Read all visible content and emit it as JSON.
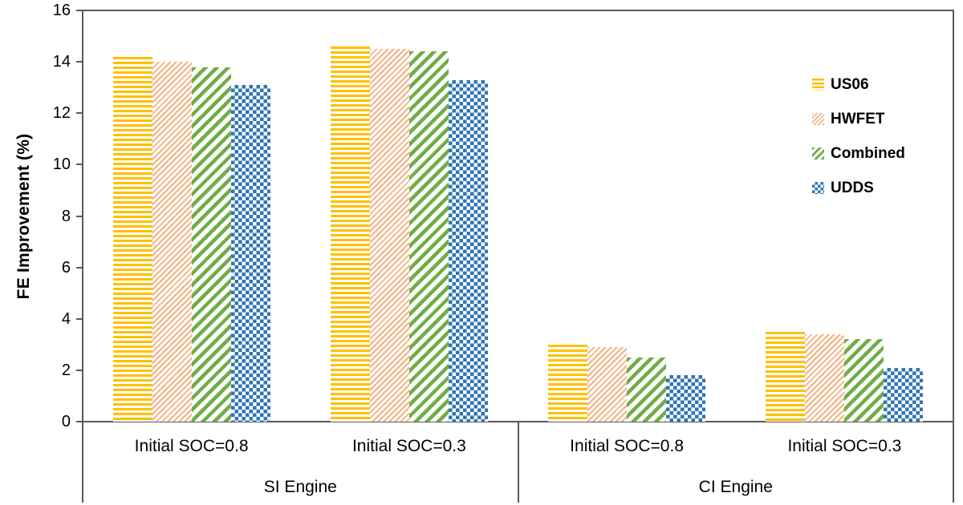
{
  "chart_data": {
    "type": "bar",
    "title": "",
    "ylabel": "FE Improvement (%)",
    "xlabel": "",
    "ylim": [
      0,
      16
    ],
    "yticks": [
      0,
      2,
      4,
      6,
      8,
      10,
      12,
      14,
      16
    ],
    "grid": false,
    "legend_position": "upper-right-inside",
    "categories": [
      "Initial SOC=0.8",
      "Initial SOC=0.3",
      "Initial SOC=0.8",
      "Initial SOC=0.3"
    ],
    "engine_sections": [
      "SI Engine",
      "CI Engine"
    ],
    "series": [
      {
        "name": "US06",
        "color": "#FFC000",
        "pattern": "horizontal-stripes",
        "values": [
          14.2,
          14.6,
          3.0,
          3.5
        ]
      },
      {
        "name": "HWFET",
        "color": "#F4B183",
        "pattern": "thin-diagonal-stripes",
        "values": [
          14.0,
          14.5,
          2.9,
          3.4
        ]
      },
      {
        "name": "Combined",
        "color": "#70AD47",
        "pattern": "wide-diagonal-stripes",
        "values": [
          13.8,
          14.4,
          2.5,
          3.2
        ]
      },
      {
        "name": "UDDS",
        "color": "#2E75B6",
        "pattern": "checkerboard",
        "values": [
          13.1,
          13.3,
          1.8,
          2.1
        ]
      }
    ],
    "axis_color": "#595959",
    "text_color": "#000000",
    "background_color": "#FFFFFF"
  }
}
